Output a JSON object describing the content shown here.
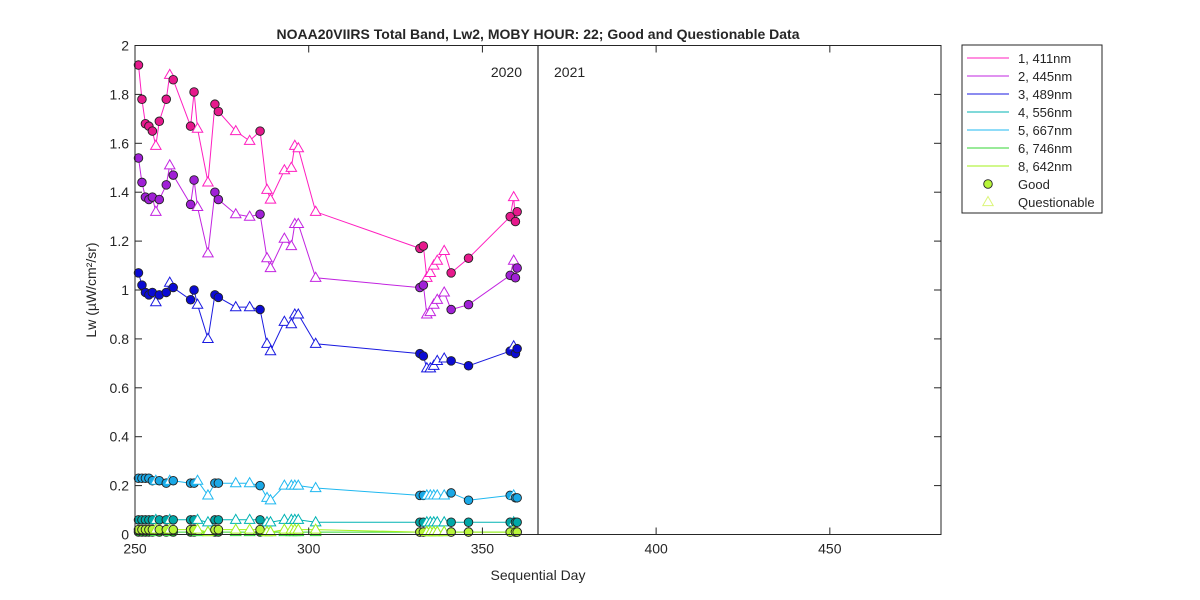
{
  "chart_data": {
    "type": "line",
    "title": "NOAA20VIIRS Total Band,  Lw2, MOBY HOUR: 22;  Good and Questionable Data",
    "xlabel": "Sequential Day",
    "ylabel": "Lw (µW/cm²/sr)",
    "xlim": [
      250,
      482
    ],
    "ylim": [
      0,
      2
    ],
    "x_ticks": [
      250,
      300,
      350,
      400,
      450
    ],
    "y_ticks": [
      0,
      0.2,
      0.4,
      0.6,
      0.8,
      1,
      1.2,
      1.4,
      1.6,
      1.8,
      2
    ],
    "grid": false,
    "divider": {
      "x": 366,
      "left_label": "2020",
      "right_label": "2021"
    },
    "legend": {
      "position": "outside-top-right",
      "good_label": "Good",
      "questionable_label": "Questionable",
      "good_color": "#b8f53a",
      "questionable_color": "#dcf57a"
    },
    "x": [
      251,
      252,
      253,
      254,
      255,
      256,
      257,
      259,
      260,
      261,
      266,
      267,
      268,
      271,
      273,
      274,
      279,
      283,
      286,
      288,
      289,
      293,
      295,
      296,
      297,
      302,
      332,
      333,
      334,
      335,
      336,
      337,
      339,
      341,
      346,
      358,
      359,
      359.5,
      360
    ],
    "quality": [
      "G",
      "G",
      "G",
      "G",
      "G",
      "Q",
      "G",
      "G",
      "Q",
      "G",
      "G",
      "G",
      "Q",
      "Q",
      "G",
      "G",
      "Q",
      "Q",
      "G",
      "Q",
      "Q",
      "Q",
      "Q",
      "Q",
      "Q",
      "Q",
      "G",
      "G",
      "Q",
      "Q",
      "Q",
      "Q",
      "Q",
      "G",
      "G",
      "G",
      "Q",
      "G",
      "G"
    ],
    "series": [
      {
        "name": "1, 411nm",
        "color": "#ff1fbf",
        "marker_color": "#e6198c",
        "values": [
          1.92,
          1.78,
          1.68,
          1.67,
          1.65,
          1.59,
          1.69,
          1.78,
          1.88,
          1.86,
          1.67,
          1.81,
          1.66,
          1.44,
          1.76,
          1.73,
          1.65,
          1.61,
          1.65,
          1.41,
          1.37,
          1.49,
          1.5,
          1.59,
          1.58,
          1.32,
          1.17,
          1.18,
          1.05,
          1.07,
          1.1,
          1.12,
          1.16,
          1.07,
          1.13,
          1.3,
          1.38,
          1.28,
          1.32
        ]
      },
      {
        "name": "2, 445nm",
        "color": "#c224e0",
        "marker_color": "#a020d6",
        "values": [
          1.54,
          1.44,
          1.38,
          1.37,
          1.38,
          1.32,
          1.37,
          1.43,
          1.51,
          1.47,
          1.35,
          1.45,
          1.34,
          1.15,
          1.4,
          1.37,
          1.31,
          1.3,
          1.31,
          1.13,
          1.09,
          1.21,
          1.18,
          1.27,
          1.27,
          1.05,
          1.01,
          1.02,
          0.9,
          0.91,
          0.94,
          0.96,
          0.99,
          0.92,
          0.94,
          1.06,
          1.12,
          1.05,
          1.09
        ]
      },
      {
        "name": "3, 489nm",
        "color": "#1a1ae0",
        "marker_color": "#0b0bd4",
        "values": [
          1.07,
          1.02,
          0.99,
          0.98,
          0.99,
          0.95,
          0.98,
          0.99,
          1.03,
          1.01,
          0.96,
          1.0,
          0.94,
          0.8,
          0.98,
          0.97,
          0.93,
          0.93,
          0.92,
          0.78,
          0.75,
          0.87,
          0.86,
          0.9,
          0.9,
          0.78,
          0.74,
          0.73,
          0.68,
          0.68,
          0.69,
          0.71,
          0.72,
          0.71,
          0.69,
          0.75,
          0.77,
          0.74,
          0.76
        ]
      },
      {
        "name": "4, 556nm",
        "color": "#00b3b3",
        "marker_color": "#00a8a8",
        "values": [
          0.06,
          0.06,
          0.06,
          0.06,
          0.06,
          0.06,
          0.06,
          0.06,
          0.06,
          0.06,
          0.06,
          0.06,
          0.06,
          0.05,
          0.06,
          0.06,
          0.06,
          0.06,
          0.06,
          0.05,
          0.05,
          0.06,
          0.06,
          0.06,
          0.06,
          0.05,
          0.05,
          0.05,
          0.05,
          0.05,
          0.05,
          0.05,
          0.05,
          0.05,
          0.05,
          0.05,
          0.05,
          0.05,
          0.05
        ]
      },
      {
        "name": "5, 667nm",
        "color": "#1fb8f0",
        "marker_color": "#1aa8e6",
        "values": [
          0.23,
          0.23,
          0.23,
          0.23,
          0.22,
          0.22,
          0.22,
          0.21,
          0.22,
          0.22,
          0.21,
          0.21,
          0.22,
          0.16,
          0.21,
          0.21,
          0.21,
          0.21,
          0.2,
          0.15,
          0.14,
          0.2,
          0.2,
          0.2,
          0.2,
          0.19,
          0.16,
          0.16,
          0.16,
          0.16,
          0.16,
          0.16,
          0.16,
          0.17,
          0.14,
          0.16,
          0.16,
          0.15,
          0.15
        ]
      },
      {
        "name": "6, 746nm",
        "color": "#33d633",
        "marker_color": "#22c422",
        "values": [
          0.01,
          0.01,
          0.01,
          0.01,
          0.01,
          0.01,
          0.01,
          0.01,
          0.01,
          0.01,
          0.01,
          0.01,
          0.01,
          0.01,
          0.01,
          0.01,
          0.01,
          0.01,
          0.01,
          0.01,
          0.01,
          0.01,
          0.01,
          0.01,
          0.01,
          0.01,
          0.01,
          0.01,
          0.01,
          0.01,
          0.01,
          0.01,
          0.01,
          0.01,
          0.01,
          0.01,
          0.01,
          0.01,
          0.01
        ]
      },
      {
        "name": "8, 642nm",
        "color": "#a3f01a",
        "marker_color": "#b8f53a",
        "values": [
          0.02,
          0.02,
          0.02,
          0.02,
          0.02,
          0.02,
          0.02,
          0.02,
          0.02,
          0.02,
          0.02,
          0.02,
          0.02,
          0.01,
          0.02,
          0.02,
          0.02,
          0.02,
          0.02,
          0.01,
          0.01,
          0.02,
          0.02,
          0.02,
          0.02,
          0.02,
          0.01,
          0.01,
          0.01,
          0.01,
          0.01,
          0.01,
          0.01,
          0.01,
          0.01,
          0.01,
          0.01,
          0.01,
          0.01
        ]
      }
    ]
  }
}
